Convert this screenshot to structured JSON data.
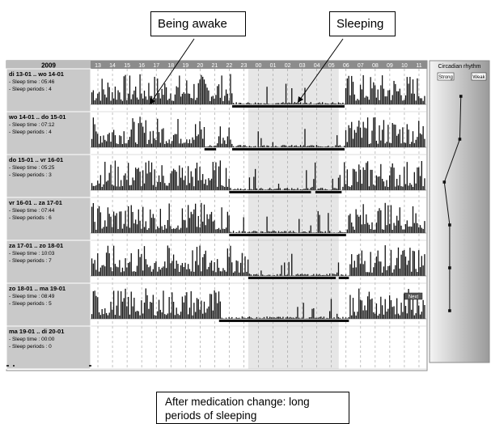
{
  "callouts": {
    "awake": "Being awake",
    "sleeping": "Sleeping",
    "medication": "After medication change: long periods of sleeping"
  },
  "chart_data": {
    "type": "bar",
    "year_label": "2009",
    "hours": [
      "13",
      "14",
      "15",
      "16",
      "17",
      "18",
      "19",
      "20",
      "21",
      "22",
      "23",
      "00",
      "01",
      "02",
      "03",
      "04",
      "05",
      "06",
      "07",
      "08",
      "09",
      "10",
      "11"
    ],
    "sleep_time_label": "- Sleep time :",
    "sleep_periods_label": "- Sleep periods :",
    "days": [
      {
        "label": "di 13-01 .. wo 14-01",
        "sleep_time": "05:46",
        "sleep_periods": "4",
        "sleep": [
          [
            22.2,
            29.9
          ]
        ]
      },
      {
        "label": "wo 14-01 .. do 15-01",
        "sleep_time": "07:12",
        "sleep_periods": "4",
        "sleep": [
          [
            20.3,
            21.1
          ],
          [
            22.2,
            29.9
          ]
        ]
      },
      {
        "label": "do 15-01 .. vr 16-01",
        "sleep_time": "05:25",
        "sleep_periods": "3",
        "sleep": [
          [
            22.0,
            27.6
          ],
          [
            27.9,
            29.7
          ]
        ]
      },
      {
        "label": "vr 16-01 .. za 17-01",
        "sleep_time": "07:44",
        "sleep_periods": "6",
        "sleep": [
          [
            22.0,
            30.0
          ]
        ]
      },
      {
        "label": "za 17-01 .. zo 18-01",
        "sleep_time": "10:03",
        "sleep_periods": "7",
        "sleep": [
          [
            23.3,
            29.3
          ],
          [
            29.5,
            30.2
          ]
        ]
      },
      {
        "label": "zo 18-01 .. ma 19-01",
        "sleep_time": "08:49",
        "sleep_periods": "5",
        "sleep": [
          [
            21.3,
            30.2
          ]
        ]
      },
      {
        "label": "ma 19-01 .. di 20-01",
        "sleep_time": "00:00",
        "sleep_periods": "0",
        "sleep": []
      }
    ],
    "circadian": {
      "title": "Circadian rhythm",
      "strong_label": "Strong",
      "weak_label": "Weak",
      "values": [
        0.72,
        0.68,
        0.1,
        0.3,
        0.3,
        0.3
      ],
      "xlim": [
        0,
        1
      ]
    },
    "marker_label": "Next",
    "shaded_range": [
      23,
      5
    ]
  }
}
